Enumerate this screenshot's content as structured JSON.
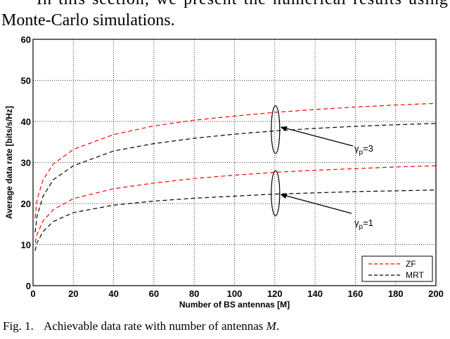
{
  "body_text": {
    "line1_words": [
      "In",
      "this",
      "section,",
      "we",
      "present",
      "the",
      "numerical",
      "results",
      "using"
    ],
    "line2": "Monte-Carlo simulations."
  },
  "chart_data": {
    "type": "line",
    "xlabel": "Number of BS antennas [M]",
    "ylabel": "Average data rate [bits/s/Hz]",
    "xlim": [
      0,
      200
    ],
    "ylim": [
      0,
      60
    ],
    "xticks": [
      0,
      20,
      40,
      60,
      80,
      100,
      120,
      140,
      160,
      180,
      200
    ],
    "yticks": [
      0,
      10,
      20,
      30,
      40,
      50,
      60
    ],
    "grid": true,
    "legend_position": "bottom-right",
    "legend": [
      {
        "label": "ZF",
        "color": "#ff0000",
        "dash": "dashed"
      },
      {
        "label": "MRT",
        "color": "#000000",
        "dash": "dashed"
      }
    ],
    "series": [
      {
        "name": "ZF",
        "group": "gamma_p=3",
        "color": "#ff0000",
        "x": [
          1,
          2,
          5,
          10,
          20,
          40,
          60,
          80,
          100,
          120,
          140,
          160,
          180,
          200
        ],
        "y": [
          16.5,
          21.0,
          25.8,
          29.6,
          33.2,
          36.8,
          38.9,
          40.3,
          41.3,
          42.2,
          42.9,
          43.5,
          44.0,
          44.4
        ]
      },
      {
        "name": "MRT",
        "group": "gamma_p=3",
        "color": "#000000",
        "x": [
          1,
          2,
          5,
          10,
          20,
          40,
          60,
          80,
          100,
          120,
          140,
          160,
          180,
          200
        ],
        "y": [
          13.0,
          17.0,
          21.8,
          25.8,
          29.2,
          32.8,
          34.6,
          35.9,
          36.9,
          37.7,
          38.3,
          38.8,
          39.2,
          39.5
        ]
      },
      {
        "name": "ZF",
        "group": "gamma_p=1",
        "color": "#ff0000",
        "x": [
          1,
          2,
          5,
          10,
          20,
          40,
          60,
          80,
          100,
          120,
          140,
          160,
          180,
          200
        ],
        "y": [
          10.5,
          12.5,
          15.8,
          18.5,
          21.2,
          23.6,
          25.0,
          26.1,
          26.9,
          27.6,
          28.1,
          28.5,
          28.9,
          29.2
        ]
      },
      {
        "name": "MRT",
        "group": "gamma_p=1",
        "color": "#000000",
        "x": [
          1,
          2,
          5,
          10,
          20,
          40,
          60,
          80,
          100,
          120,
          140,
          160,
          180,
          200
        ],
        "y": [
          8.5,
          10.5,
          13.2,
          15.6,
          17.8,
          19.6,
          20.6,
          21.3,
          21.8,
          22.3,
          22.6,
          22.9,
          23.1,
          23.3
        ]
      }
    ],
    "annotations": [
      {
        "text": "γp=3",
        "symbol": "γ",
        "subscript": "p",
        "value": "=3",
        "points_to_x": 120,
        "points_to_y": 38.5
      },
      {
        "text": "γp=1",
        "symbol": "γ",
        "subscript": "p",
        "value": "=1",
        "points_to_x": 120,
        "points_to_y": 22.5
      }
    ]
  },
  "caption": {
    "label": "Fig. 1.",
    "text": "Achievable data rate with number of antennas ",
    "variable": "M",
    "end": "."
  }
}
